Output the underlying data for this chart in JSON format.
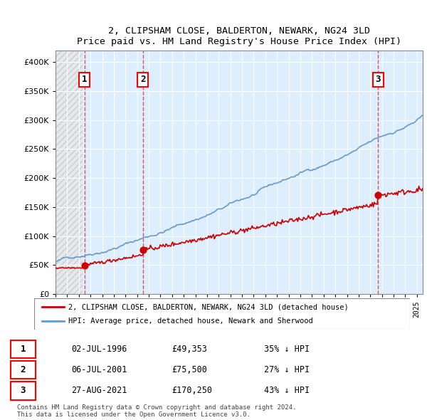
{
  "title1": "2, CLIPSHAM CLOSE, BALDERTON, NEWARK, NG24 3LD",
  "title2": "Price paid vs. HM Land Registry's House Price Index (HPI)",
  "ylabel_ticks": [
    "£0",
    "£50K",
    "£100K",
    "£150K",
    "£200K",
    "£250K",
    "£300K",
    "£350K",
    "£400K"
  ],
  "ytick_vals": [
    0,
    50000,
    100000,
    150000,
    200000,
    250000,
    300000,
    350000,
    400000
  ],
  "ylim": [
    0,
    420000
  ],
  "xlim_start": 1994.0,
  "xlim_end": 2025.5,
  "sale_dates": [
    1996.5,
    2001.5,
    2021.667
  ],
  "sale_prices": [
    49353,
    75500,
    170250
  ],
  "sale_labels": [
    "1",
    "2",
    "3"
  ],
  "dashed_line_color": "#e05050",
  "sale_dot_color": "#cc0000",
  "hatch_color": "#c8c8c8",
  "hatch_fill_color": "#e8e8e8",
  "grid_color": "#cccccc",
  "hpi_line_color": "#6699cc",
  "sold_line_color": "#cc0000",
  "legend_entries": [
    "2, CLIPSHAM CLOSE, BALDERTON, NEWARK, NG24 3LD (detached house)",
    "HPI: Average price, detached house, Newark and Sherwood"
  ],
  "table_data": [
    [
      "1",
      "02-JUL-1996",
      "£49,353",
      "35% ↓ HPI"
    ],
    [
      "2",
      "06-JUL-2001",
      "£75,500",
      "27% ↓ HPI"
    ],
    [
      "3",
      "27-AUG-2021",
      "£170,250",
      "43% ↓ HPI"
    ]
  ],
  "footnote": "Contains HM Land Registry data © Crown copyright and database right 2024.\nThis data is licensed under the Open Government Licence v3.0.",
  "background_hatch_end_year": 1996.0
}
